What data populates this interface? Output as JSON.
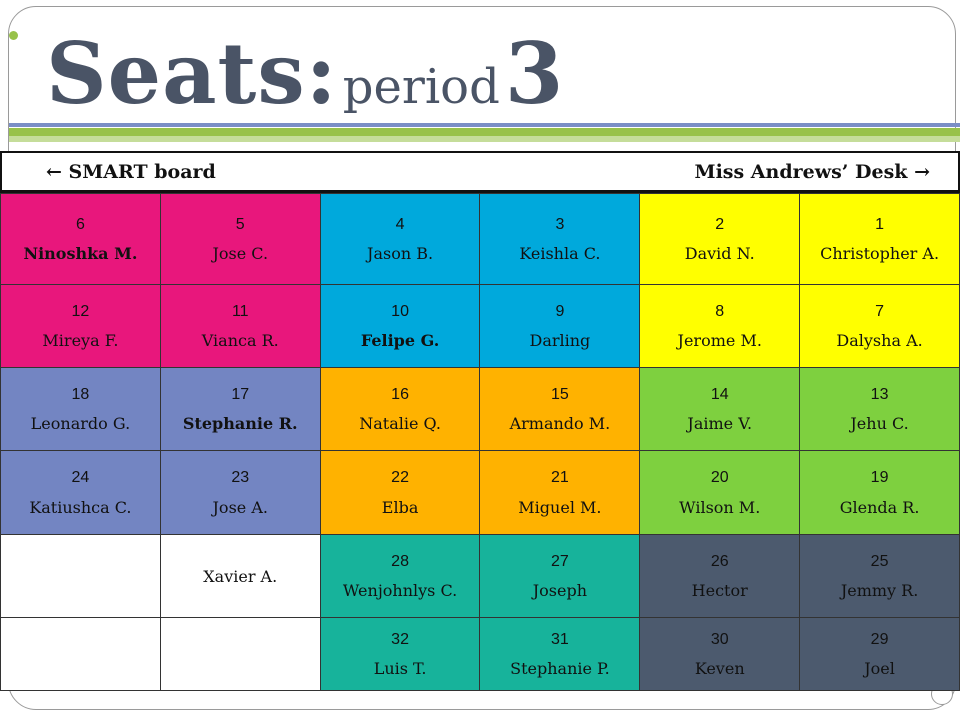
{
  "title": {
    "main": "Seats:",
    "sub": "period",
    "number": "3"
  },
  "front": {
    "left": "← SMART board",
    "right": "Miss Andrews’ Desk →"
  },
  "colors": {
    "pink": "#e8177c",
    "cyan": "#00a9dc",
    "yellow": "#ffff00",
    "periwinkle": "#7385c2",
    "orange": "#ffb200",
    "lime": "#7ed03f",
    "teal": "#17b39b",
    "slate": "#4c5a6e",
    "title_text": "#4a5466",
    "accent_green": "#98c24a"
  },
  "rows": [
    [
      {
        "num": "6",
        "name": "Ninoshka M."
      },
      {
        "num": "5",
        "name": "Jose C."
      },
      {
        "num": "4",
        "name": "Jason B."
      },
      {
        "num": "3",
        "name": "Keishla C."
      },
      {
        "num": "2",
        "name": "David N."
      },
      {
        "num": "1",
        "name": "Christopher  A."
      }
    ],
    [
      {
        "num": "12",
        "name": "Mireya F."
      },
      {
        "num": "11",
        "name": "Vianca R."
      },
      {
        "num": "10",
        "name": "Felipe G."
      },
      {
        "num": "9",
        "name": "Darling"
      },
      {
        "num": "8",
        "name": "Jerome M."
      },
      {
        "num": "7",
        "name": "Dalysha A."
      }
    ],
    [
      {
        "num": "18",
        "name": "Leonardo G."
      },
      {
        "num": "17",
        "name": "Stephanie R."
      },
      {
        "num": "16",
        "name": "Natalie Q."
      },
      {
        "num": "15",
        "name": "Armando M."
      },
      {
        "num": "14",
        "name": "Jaime V."
      },
      {
        "num": "13",
        "name": "Jehu C."
      }
    ],
    [
      {
        "num": "24",
        "name": "Katiushca C."
      },
      {
        "num": "23",
        "name": "Jose A."
      },
      {
        "num": "22",
        "name": "Elba"
      },
      {
        "num": "21",
        "name": "Miguel M."
      },
      {
        "num": "20",
        "name": "Wilson M."
      },
      {
        "num": "19",
        "name": "Glenda R."
      }
    ],
    [
      {
        "num": "",
        "name": ""
      },
      {
        "num": "",
        "name": "Xavier A."
      },
      {
        "num": "28",
        "name": "Wenjohnlys C."
      },
      {
        "num": "27",
        "name": "Joseph"
      },
      {
        "num": "26",
        "name": "Hector"
      },
      {
        "num": "25",
        "name": "Jemmy R."
      }
    ],
    [
      {
        "num": "",
        "name": ""
      },
      {
        "num": "",
        "name": ""
      },
      {
        "num": "32",
        "name": "Luis T."
      },
      {
        "num": "31",
        "name": "Stephanie P."
      },
      {
        "num": "30",
        "name": "Keven"
      },
      {
        "num": "29",
        "name": "Joel"
      }
    ]
  ]
}
